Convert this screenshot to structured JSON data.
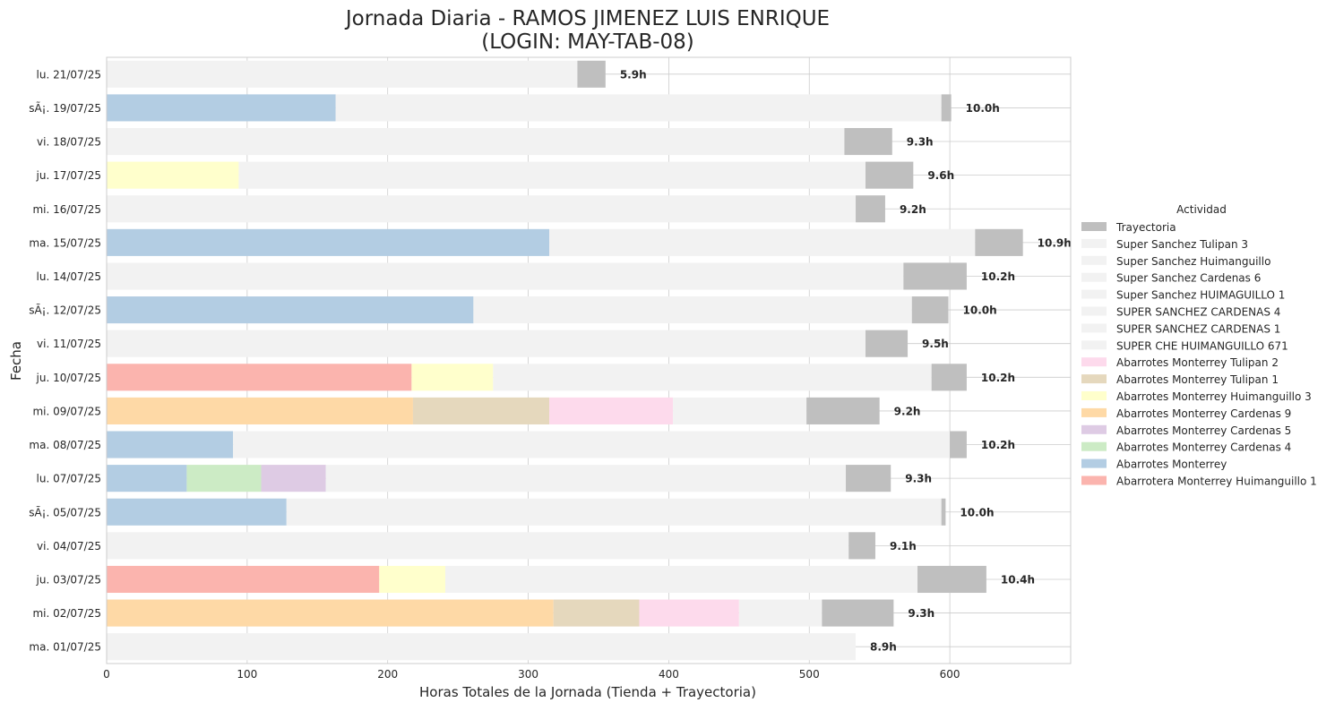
{
  "chart_data": {
    "type": "bar",
    "orientation": "horizontal",
    "stacked": true,
    "title": "Jornada Diaria - RAMOS JIMENEZ LUIS ENRIQUE",
    "subtitle": "(LOGIN: MAY-TAB-08)",
    "xlabel": "Horas Totales de la Jornada (Tienda + Trayectoria)",
    "ylabel": "Fecha",
    "xlim": [
      0,
      686
    ],
    "xticks": [
      0,
      100,
      200,
      300,
      400,
      500,
      600
    ],
    "grid": true,
    "legend_title": "Actividad",
    "legend_position": "right",
    "categories": [
      "lu. 21/07/25",
      "sÃ¡. 19/07/25",
      "vi. 18/07/25",
      "ju. 17/07/25",
      "mi. 16/07/25",
      "ma. 15/07/25",
      "lu. 14/07/25",
      "sÃ¡. 12/07/25",
      "vi. 11/07/25",
      "ju. 10/07/25",
      "mi. 09/07/25",
      "ma. 08/07/25",
      "lu. 07/07/25",
      "sÃ¡. 05/07/25",
      "vi. 04/07/25",
      "ju. 03/07/25",
      "mi. 02/07/25",
      "ma. 01/07/25"
    ],
    "total_labels": [
      "5.9h",
      "10.0h",
      "9.3h",
      "9.6h",
      "9.2h",
      "10.9h",
      "10.2h",
      "10.0h",
      "9.5h",
      "10.2h",
      "9.2h",
      "10.2h",
      "9.3h",
      "10.0h",
      "9.1h",
      "10.4h",
      "9.3h",
      "8.9h"
    ],
    "series": [
      {
        "name": "Trayectoria",
        "color": "#bfbfbf"
      },
      {
        "name": "Super Sanchez Tulipan 3",
        "color": "#f2f2f2"
      },
      {
        "name": "Super Sanchez Huimanguillo",
        "color": "#f2f2f2"
      },
      {
        "name": "Super Sanchez Cardenas 6",
        "color": "#f2f2f2"
      },
      {
        "name": "Super Sanchez  HUIMAGUILLO 1",
        "color": "#f2f2f2"
      },
      {
        "name": "SUPER SANCHEZ CARDENAS  4",
        "color": "#f2f2f2"
      },
      {
        "name": "SUPER SANCHEZ CARDENAS  1",
        "color": "#f2f2f2"
      },
      {
        "name": "SUPER CHE HUIMANGUILLO 671",
        "color": "#f2f2f2"
      },
      {
        "name": "Abarrotes Monterrey Tulipan 2",
        "color": "#fddaec"
      },
      {
        "name": "Abarrotes Monterrey Tulipan 1",
        "color": "#e5d8bd"
      },
      {
        "name": "Abarrotes Monterrey Huimanguillo 3",
        "color": "#ffffcc"
      },
      {
        "name": "Abarrotes Monterrey Cardenas 9",
        "color": "#fed9a6"
      },
      {
        "name": "Abarrotes Monterrey Cardenas 5",
        "color": "#decbe4"
      },
      {
        "name": "Abarrotes Monterrey Cardenas 4",
        "color": "#ccebc5"
      },
      {
        "name": "Abarrotes Monterrey",
        "color": "#b3cde3"
      },
      {
        "name": "Abarrotera Monterrey Huimanguillo 1",
        "color": "#fbb4ae"
      }
    ],
    "segments": [
      [
        {
          "series": "Super Sanchez Tulipan 3",
          "start": 0,
          "end": 335
        },
        {
          "series": "Trayectoria",
          "start": 335,
          "end": 355
        }
      ],
      [
        {
          "series": "Abarrotes Monterrey",
          "start": 0,
          "end": 163
        },
        {
          "series": "Super Sanchez Tulipan 3",
          "start": 163,
          "end": 594
        },
        {
          "series": "Trayectoria",
          "start": 594,
          "end": 601
        }
      ],
      [
        {
          "series": "Super Sanchez Tulipan 3",
          "start": 0,
          "end": 525
        },
        {
          "series": "Trayectoria",
          "start": 525,
          "end": 559
        }
      ],
      [
        {
          "series": "Abarrotes Monterrey Huimanguillo 3",
          "start": 0,
          "end": 94
        },
        {
          "series": "Super Sanchez Tulipan 3",
          "start": 94,
          "end": 540
        },
        {
          "series": "Trayectoria",
          "start": 540,
          "end": 574
        }
      ],
      [
        {
          "series": "Super Sanchez Tulipan 3",
          "start": 0,
          "end": 533
        },
        {
          "series": "Trayectoria",
          "start": 533,
          "end": 554
        }
      ],
      [
        {
          "series": "Abarrotes Monterrey",
          "start": 0,
          "end": 315
        },
        {
          "series": "Super Sanchez Tulipan 3",
          "start": 315,
          "end": 618
        },
        {
          "series": "Trayectoria",
          "start": 618,
          "end": 652
        }
      ],
      [
        {
          "series": "Super Sanchez Tulipan 3",
          "start": 0,
          "end": 567
        },
        {
          "series": "Trayectoria",
          "start": 567,
          "end": 612
        }
      ],
      [
        {
          "series": "Abarrotes Monterrey",
          "start": 0,
          "end": 261
        },
        {
          "series": "Super Sanchez Tulipan 3",
          "start": 261,
          "end": 573
        },
        {
          "series": "Trayectoria",
          "start": 573,
          "end": 599
        }
      ],
      [
        {
          "series": "Super Sanchez Tulipan 3",
          "start": 0,
          "end": 540
        },
        {
          "series": "Trayectoria",
          "start": 540,
          "end": 570
        }
      ],
      [
        {
          "series": "Abarrotera Monterrey Huimanguillo 1",
          "start": 0,
          "end": 217
        },
        {
          "series": "Abarrotes Monterrey Huimanguillo 3",
          "start": 217,
          "end": 275
        },
        {
          "series": "Super Sanchez Tulipan 3",
          "start": 275,
          "end": 587
        },
        {
          "series": "Trayectoria",
          "start": 587,
          "end": 612
        }
      ],
      [
        {
          "series": "Abarrotes Monterrey Cardenas 9",
          "start": 0,
          "end": 218
        },
        {
          "series": "Abarrotes Monterrey Tulipan 1",
          "start": 218,
          "end": 315
        },
        {
          "series": "Abarrotes Monterrey Tulipan 2",
          "start": 315,
          "end": 403
        },
        {
          "series": "Super Sanchez Tulipan 3",
          "start": 403,
          "end": 498
        },
        {
          "series": "Trayectoria",
          "start": 498,
          "end": 550
        }
      ],
      [
        {
          "series": "Abarrotes Monterrey",
          "start": 0,
          "end": 90
        },
        {
          "series": "Super Sanchez Tulipan 3",
          "start": 90,
          "end": 600
        },
        {
          "series": "Trayectoria",
          "start": 600,
          "end": 612
        }
      ],
      [
        {
          "series": "Abarrotes Monterrey",
          "start": 0,
          "end": 57
        },
        {
          "series": "Abarrotes Monterrey Cardenas 4",
          "start": 57,
          "end": 110
        },
        {
          "series": "Abarrotes Monterrey Cardenas 5",
          "start": 110,
          "end": 156
        },
        {
          "series": "Super Sanchez Tulipan 3",
          "start": 156,
          "end": 526
        },
        {
          "series": "Trayectoria",
          "start": 526,
          "end": 558
        }
      ],
      [
        {
          "series": "Abarrotes Monterrey",
          "start": 0,
          "end": 128
        },
        {
          "series": "Super Sanchez Tulipan 3",
          "start": 128,
          "end": 594
        },
        {
          "series": "Trayectoria",
          "start": 594,
          "end": 597
        }
      ],
      [
        {
          "series": "Super Sanchez Tulipan 3",
          "start": 0,
          "end": 528
        },
        {
          "series": "Trayectoria",
          "start": 528,
          "end": 547
        }
      ],
      [
        {
          "series": "Abarrotera Monterrey Huimanguillo 1",
          "start": 0,
          "end": 194
        },
        {
          "series": "Abarrotes Monterrey Huimanguillo 3",
          "start": 194,
          "end": 241
        },
        {
          "series": "Super Sanchez Tulipan 3",
          "start": 241,
          "end": 577
        },
        {
          "series": "Trayectoria",
          "start": 577,
          "end": 626
        }
      ],
      [
        {
          "series": "Abarrotes Monterrey Cardenas 9",
          "start": 0,
          "end": 318
        },
        {
          "series": "Abarrotes Monterrey Tulipan 1",
          "start": 318,
          "end": 379
        },
        {
          "series": "Abarrotes Monterrey Tulipan 2",
          "start": 379,
          "end": 450
        },
        {
          "series": "Super Sanchez Tulipan 3",
          "start": 450,
          "end": 509
        },
        {
          "series": "Trayectoria",
          "start": 509,
          "end": 560
        }
      ],
      [
        {
          "series": "Super Sanchez Tulipan 3",
          "start": 0,
          "end": 533
        }
      ]
    ]
  }
}
